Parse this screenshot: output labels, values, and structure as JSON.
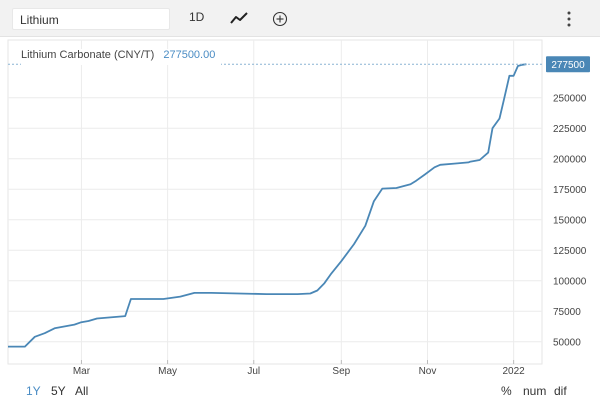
{
  "header": {
    "search_value": "Lithium",
    "interval_label": "1D",
    "line_type_icon": "line-chart-icon",
    "add_icon": "add-circle-icon",
    "more_icon": "more-vertical-icon"
  },
  "legend": {
    "name": "Lithium Carbonate (CNY/T)",
    "value": "277500.00"
  },
  "price_tag": "277500",
  "footer": {
    "ranges": [
      "1Y",
      "5Y",
      "All"
    ],
    "options": [
      "%",
      "num",
      "dif"
    ]
  },
  "colors": {
    "line": "#4a87b6",
    "accent": "#4a8cc4",
    "price_tag_bg": "#4a87b6",
    "grid": "#ececec"
  },
  "chart_data": {
    "type": "line",
    "series": [
      {
        "name": "Lithium Carbonate (CNY/T)",
        "x": [
          "2021-01-08",
          "2021-01-20",
          "2021-01-27",
          "2021-02-03",
          "2021-02-10",
          "2021-02-24",
          "2021-03-01",
          "2021-03-06",
          "2021-03-12",
          "2021-04-01",
          "2021-04-05",
          "2021-04-28",
          "2021-05-10",
          "2021-05-20",
          "2021-06-01",
          "2021-07-10",
          "2021-07-28",
          "2021-08-01",
          "2021-08-10",
          "2021-08-15",
          "2021-08-20",
          "2021-08-25",
          "2021-09-01",
          "2021-09-10",
          "2021-09-18",
          "2021-09-24",
          "2021-09-30",
          "2021-10-10",
          "2021-10-20",
          "2021-10-24",
          "2021-10-30",
          "2021-11-06",
          "2021-11-10",
          "2021-11-20",
          "2021-11-30",
          "2021-12-01",
          "2021-12-08",
          "2021-12-14",
          "2021-12-17",
          "2021-12-22",
          "2021-12-25",
          "2021-12-29",
          "2022-01-01",
          "2022-01-04",
          "2022-01-07",
          "2022-01-10"
        ],
        "y": [
          46000,
          46000,
          54000,
          57000,
          61000,
          64000,
          66000,
          67000,
          69000,
          71000,
          85000,
          85000,
          87000,
          90000,
          90000,
          89000,
          89000,
          89000,
          89500,
          92000,
          98000,
          106000,
          116000,
          130000,
          145000,
          165000,
          175500,
          176000,
          179000,
          182000,
          187000,
          193000,
          195000,
          196000,
          197000,
          197500,
          199000,
          205000,
          225000,
          233000,
          248000,
          268000,
          268000,
          276000,
          277000,
          277500
        ]
      }
    ],
    "x_ticks": [
      "Mar",
      "May",
      "Jul",
      "Sep",
      "Nov",
      "2022"
    ],
    "y_ticks": [
      "50000",
      "75000",
      "100000",
      "125000",
      "150000",
      "175000",
      "200000",
      "225000",
      "250000"
    ],
    "ylim": [
      35000,
      285000
    ],
    "xlim": [
      "2021-01-08",
      "2022-01-14"
    ],
    "grid": true,
    "y_axis_position": "right"
  }
}
